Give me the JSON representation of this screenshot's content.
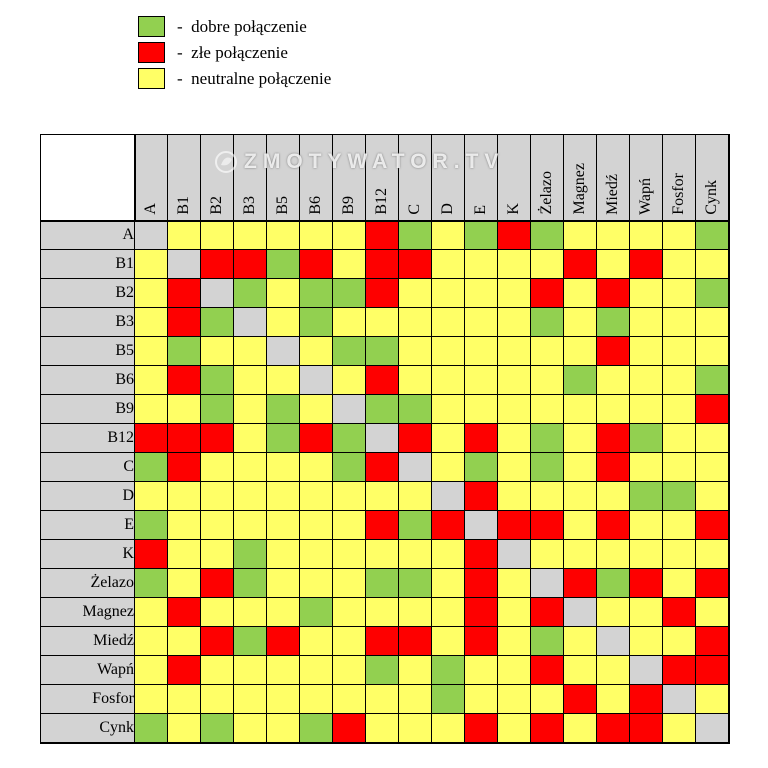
{
  "legend": {
    "items": [
      {
        "code": "G",
        "label": "-  dobre połączenie"
      },
      {
        "code": "R",
        "label": "-  złe połączenie"
      },
      {
        "code": "Y",
        "label": "-  neutralne połączenie"
      }
    ]
  },
  "watermark": {
    "text": "ZMOTYWATOR.TV"
  },
  "colors": {
    "good": "#92d050",
    "bad": "#fe0000",
    "neutral": "#ffff66",
    "self": "#d3d3d3"
  },
  "chart_data": {
    "type": "heatmap",
    "labels": [
      "A",
      "B1",
      "B2",
      "B3",
      "B5",
      "B6",
      "B9",
      "B12",
      "C",
      "D",
      "E",
      "K",
      "Żelazo",
      "Magnez",
      "Miedź",
      "Wapń",
      "Fosfor",
      "Cynk"
    ],
    "codes": {
      "G": "dobre połączenie",
      "R": "złe połączenie",
      "Y": "neutralne połączenie",
      "S": "przekątna (ten sam składnik)"
    },
    "matrix": [
      "SYYYYYYRGYGRGYYYYG",
      "YSRRGRYRRYYYYRYRYY",
      "YRSGYGGRYYYYRYRYYG",
      "YRGSYGYYYYYYGYGYYY",
      "YGYYSYGGYYYYYYRYYY",
      "YRGYYSYRYYYYYGYYYG",
      "YYGYGYSGGYYYYYYYYR",
      "RRRYGRGSRYRYGYRGYY",
      "GRYYYYGRSYGYGYRYYY",
      "YYYYYYYYYSRYYYYGGY",
      "GYYYYYYRGRSRRYRYYR",
      "RYYGYYYYYYRSYYYYYY",
      "GYRGYYYGGYRYSRGRYR",
      "YRYYYGYYYYRYRSYYRY",
      "YYRGRYYRRYRYGYSYYR",
      "YRYYYYYGYGYYRYYSRR",
      "YYYYYYYYYGYYYRYRSY",
      "GYGYYGRYYYRYRYRRYS"
    ]
  }
}
